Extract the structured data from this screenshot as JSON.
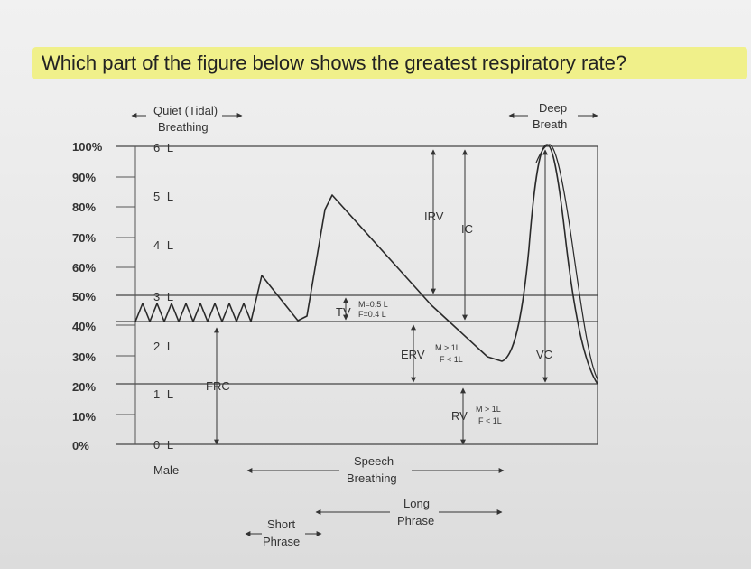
{
  "question": "Which part of the figure below shows the greatest respiratory rate?",
  "percent_labels": [
    "100%",
    "90%",
    "80%",
    "70%",
    "60%",
    "50%",
    "40%",
    "30%",
    "20%",
    "10%",
    "0%"
  ],
  "volume_labels": [
    "6 L",
    "5 L",
    "4 L",
    "3 L",
    "2 L",
    "1 L",
    "0 L"
  ],
  "quiet_breathing": {
    "line1": "Quiet (Tidal)",
    "line2": "Breathing"
  },
  "deep_breath": {
    "line1": "Deep",
    "line2": "Breath"
  },
  "sex_label": "Male",
  "frc": "FRC",
  "tv": {
    "label": "TV",
    "male": "M=0.5 L",
    "female": "F=0.4 L"
  },
  "irv": "IRV",
  "ic": "IC",
  "erv": {
    "label": "ERV",
    "male": "M > 1L",
    "female": "F < 1L"
  },
  "rv": {
    "label": "RV",
    "male": "M > 1L",
    "female": "F < 1L"
  },
  "vc": "VC",
  "speech_breathing": {
    "line1": "Speech",
    "line2": "Breathing"
  },
  "long_phrase": {
    "line1": "Long",
    "line2": "Phrase"
  },
  "short_phrase": {
    "line1": "Short",
    "line2": "Phrase"
  },
  "colors": {
    "highlight": "#f0f08a",
    "line": "#2a2a2a"
  }
}
